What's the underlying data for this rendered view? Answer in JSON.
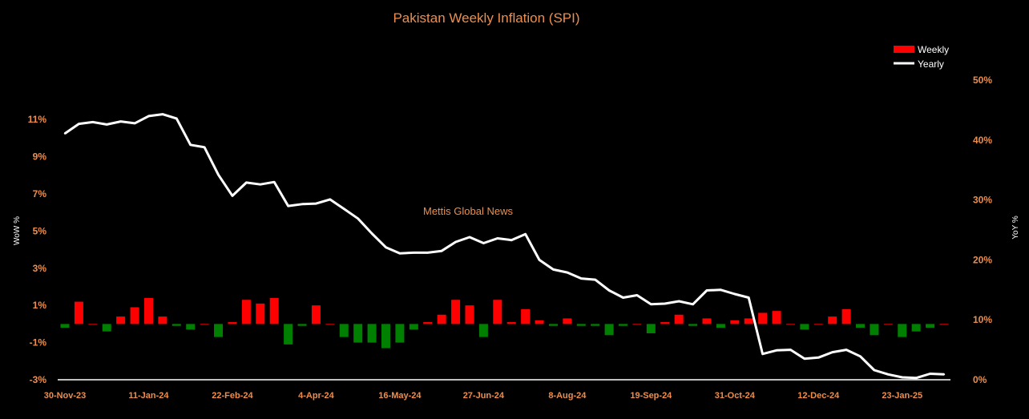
{
  "chart_data": {
    "type": "bar+line",
    "title": "Pakistan Weekly Inflation (SPI)",
    "annotation": "Mettis Global News",
    "ylabel_left": "WoW %",
    "ylabel_right": "YoY %",
    "ylim_left": [
      -3,
      12
    ],
    "ylim_right": [
      0,
      50
    ],
    "left_ticks": [
      "11%",
      "9%",
      "7%",
      "5%",
      "3%",
      "1%",
      "-1%",
      "-3%"
    ],
    "right_ticks": [
      "50%",
      "40%",
      "30%",
      "20%",
      "10%",
      "0%"
    ],
    "x_tick_labels": [
      "30-Nov-23",
      "11-Jan-24",
      "22-Feb-24",
      "4-Apr-24",
      "16-May-24",
      "27-Jun-24",
      "8-Aug-24",
      "19-Sep-24",
      "31-Oct-24",
      "12-Dec-24",
      "23-Jan-25"
    ],
    "legend": {
      "position": "top-right",
      "items": [
        "Weekly",
        "Yearly"
      ]
    },
    "colors": {
      "positive": "#ff0000",
      "negative": "#008000",
      "line": "#ffffff",
      "text": "#ec8e4e",
      "axis": "#ffffff"
    },
    "series": [
      {
        "name": "Weekly",
        "type": "bar",
        "values": [
          -0.2,
          1.2,
          0.0,
          -0.4,
          0.4,
          0.9,
          1.4,
          0.4,
          -0.1,
          -0.3,
          0.0,
          -0.7,
          0.1,
          1.3,
          1.1,
          1.4,
          -1.1,
          -0.1,
          1.0,
          0.0,
          -0.7,
          -1.0,
          -1.0,
          -1.3,
          -1.0,
          -0.3,
          0.1,
          0.5,
          1.3,
          1.0,
          -0.7,
          1.3,
          0.1,
          0.8,
          0.2,
          -0.1,
          0.3,
          -0.1,
          -0.1,
          -0.6,
          -0.1,
          0.0,
          -0.5,
          0.1,
          0.5,
          -0.1,
          0.3,
          -0.2,
          0.2,
          0.3,
          0.6,
          0.7,
          0.0,
          -0.3,
          0.0,
          0.4,
          0.8,
          -0.2,
          -0.6,
          0.0,
          -0.7,
          -0.4,
          -0.2,
          0.0
        ]
      },
      {
        "name": "Yearly",
        "type": "line",
        "values": [
          41.1,
          42.7,
          43.0,
          42.6,
          43.1,
          42.8,
          44.0,
          44.3,
          43.6,
          39.2,
          38.8,
          34.2,
          30.7,
          32.9,
          32.6,
          33.0,
          29.0,
          29.3,
          29.4,
          30.1,
          28.5,
          26.9,
          24.4,
          22.1,
          21.1,
          21.2,
          21.2,
          21.5,
          23.0,
          23.8,
          22.8,
          23.6,
          23.3,
          24.3,
          20.0,
          18.4,
          17.9,
          16.9,
          16.7,
          14.9,
          13.7,
          14.1,
          12.6,
          12.7,
          13.1,
          12.6,
          14.9,
          15.0,
          14.3,
          13.7,
          4.3,
          4.9,
          5.0,
          3.5,
          3.7,
          4.6,
          5.0,
          3.9,
          1.6,
          0.9,
          0.4,
          0.3,
          1.0,
          0.9
        ]
      }
    ]
  }
}
